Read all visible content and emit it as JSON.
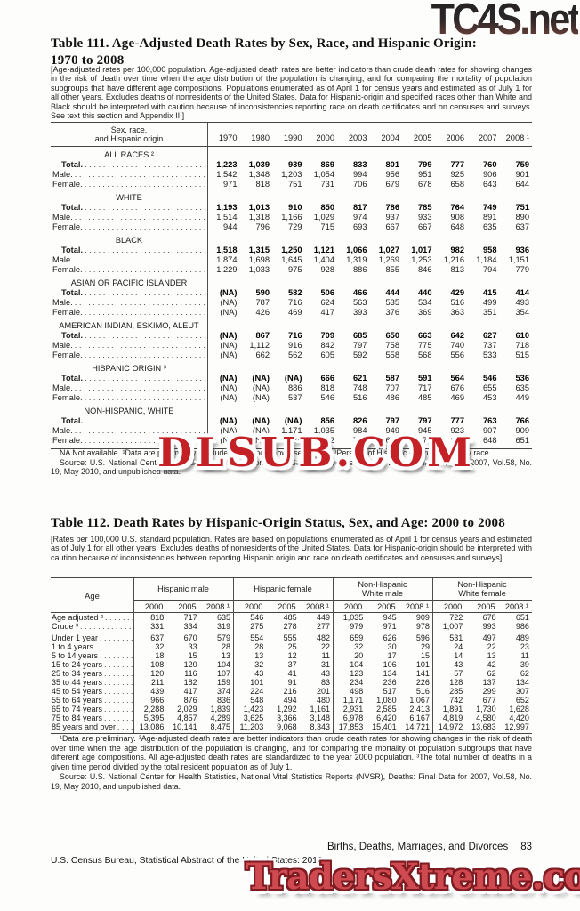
{
  "watermarks": {
    "top": "TC4S.net",
    "middle": "DLSUB.COM",
    "bottom": "TradersXtreme.com"
  },
  "footer": {
    "section": "Births, Deaths, Marriages, and Divorces",
    "page": "83",
    "left": "U.S. Census Bureau, Statistical Abstract of the United States: 2012"
  },
  "table111": {
    "title_line1": "Table 111. Age-Adjusted Death Rates by Sex, Race, and Hispanic Origin:",
    "title_line2": "1970 to 2008",
    "note": "[Age-adjusted rates per 100,000 population. Age-adjusted death rates are better indicators than crude death rates for showing changes in the risk of death over time when the age distribution of the population is changing, and for comparing the mortality of population subgroups that have different age compositions. Populations enumerated as of April 1 for census years and estimated as of July 1 for all other years. Excludes deaths of nonresidents of the United States. Data for Hispanic-origin and specified races other than White and Black should be interpreted with caution because of inconsistencies reporting race on death certificates and on censuses and surveys. See text this section and Appendix III]",
    "stub_head": "Sex, race,\nand Hispanic origin",
    "years": [
      "1970",
      "1980",
      "1990",
      "2000",
      "2003",
      "2004",
      "2005",
      "2006",
      "2007",
      "2008 ¹"
    ],
    "groups": [
      {
        "label": "ALL RACES ²",
        "rows": [
          {
            "label": "Total.",
            "bold": true,
            "values": [
              "1,223",
              "1,039",
              "939",
              "869",
              "833",
              "801",
              "799",
              "777",
              "760",
              "759"
            ]
          },
          {
            "label": "Male.",
            "bold": false,
            "values": [
              "1,542",
              "1,348",
              "1,203",
              "1,054",
              "994",
              "956",
              "951",
              "925",
              "906",
              "901"
            ]
          },
          {
            "label": "Female.",
            "bold": false,
            "values": [
              "971",
              "818",
              "751",
              "731",
              "706",
              "679",
              "678",
              "658",
              "643",
              "644"
            ]
          }
        ]
      },
      {
        "label": "WHITE",
        "rows": [
          {
            "label": "Total.",
            "bold": true,
            "values": [
              "1,193",
              "1,013",
              "910",
              "850",
              "817",
              "786",
              "785",
              "764",
              "749",
              "751"
            ]
          },
          {
            "label": "Male.",
            "bold": false,
            "values": [
              "1,514",
              "1,318",
              "1,166",
              "1,029",
              "974",
              "937",
              "933",
              "908",
              "891",
              "890"
            ]
          },
          {
            "label": "Female.",
            "bold": false,
            "values": [
              "944",
              "796",
              "729",
              "715",
              "693",
              "667",
              "667",
              "648",
              "635",
              "637"
            ]
          }
        ]
      },
      {
        "label": "BLACK",
        "rows": [
          {
            "label": "Total.",
            "bold": true,
            "values": [
              "1,518",
              "1,315",
              "1,250",
              "1,121",
              "1,066",
              "1,027",
              "1,017",
              "982",
              "958",
              "936"
            ]
          },
          {
            "label": "Male.",
            "bold": false,
            "values": [
              "1,874",
              "1,698",
              "1,645",
              "1,404",
              "1,319",
              "1,269",
              "1,253",
              "1,216",
              "1,184",
              "1,151"
            ]
          },
          {
            "label": "Female.",
            "bold": false,
            "values": [
              "1,229",
              "1,033",
              "975",
              "928",
              "886",
              "855",
              "846",
              "813",
              "794",
              "779"
            ]
          }
        ]
      },
      {
        "label": "ASIAN OR PACIFIC ISLANDER",
        "rows": [
          {
            "label": "Total.",
            "bold": true,
            "values": [
              "(NA)",
              "590",
              "582",
              "506",
              "466",
              "444",
              "440",
              "429",
              "415",
              "414"
            ]
          },
          {
            "label": "Male.",
            "bold": false,
            "values": [
              "(NA)",
              "787",
              "716",
              "624",
              "563",
              "535",
              "534",
              "516",
              "499",
              "493"
            ]
          },
          {
            "label": "Female.",
            "bold": false,
            "values": [
              "(NA)",
              "426",
              "469",
              "417",
              "393",
              "376",
              "369",
              "363",
              "351",
              "354"
            ]
          }
        ]
      },
      {
        "label": "AMERICAN INDIAN, ESKIMO, ALEUT",
        "rows": [
          {
            "label": "Total.",
            "bold": true,
            "values": [
              "(NA)",
              "867",
              "716",
              "709",
              "685",
              "650",
              "663",
              "642",
              "627",
              "610"
            ]
          },
          {
            "label": "Male.",
            "bold": false,
            "values": [
              "(NA)",
              "1,112",
              "916",
              "842",
              "797",
              "758",
              "775",
              "740",
              "737",
              "718"
            ]
          },
          {
            "label": "Female.",
            "bold": false,
            "values": [
              "(NA)",
              "662",
              "562",
              "605",
              "592",
              "558",
              "568",
              "556",
              "533",
              "515"
            ]
          }
        ]
      },
      {
        "label": "HISPANIC ORIGIN ³",
        "rows": [
          {
            "label": "Total.",
            "bold": true,
            "values": [
              "(NA)",
              "(NA)",
              "(NA)",
              "666",
              "621",
              "587",
              "591",
              "564",
              "546",
              "536"
            ]
          },
          {
            "label": "Male.",
            "bold": false,
            "values": [
              "(NA)",
              "(NA)",
              "886",
              "818",
              "748",
              "707",
              "717",
              "676",
              "655",
              "635"
            ]
          },
          {
            "label": "Female.",
            "bold": false,
            "values": [
              "(NA)",
              "(NA)",
              "537",
              "546",
              "516",
              "486",
              "485",
              "469",
              "453",
              "449"
            ]
          }
        ]
      },
      {
        "label": "NON-HISPANIC, WHITE",
        "rows": [
          {
            "label": "Total.",
            "bold": true,
            "values": [
              "(NA)",
              "(NA)",
              "(NA)",
              "856",
              "826",
              "797",
              "797",
              "777",
              "763",
              "766"
            ]
          },
          {
            "label": "Male.",
            "bold": false,
            "values": [
              "(NA)",
              "(NA)",
              "1,171",
              "1,035",
              "984",
              "949",
              "945",
              "923",
              "907",
              "909"
            ]
          },
          {
            "label": "Female.",
            "bold": false,
            "values": [
              "(NA)",
              "(NA)",
              "735",
              "722",
              "702",
              "678",
              "678",
              "660",
              "648",
              "651"
            ]
          }
        ]
      }
    ],
    "footnote": "NA Not available. ¹Data are preliminary. ²Includes races not shown separately. ³Persons of Hispanic origin may be any race.",
    "source": "Source: U.S. National Center for Health Statistics, National Vital Statistics Reports (NVSR), Deaths: Final Data for 2007, Vol.58, No. 19, May 2010, and unpublished data."
  },
  "table112": {
    "title": "Table 112. Death Rates by Hispanic-Origin Status, Sex, and Age: 2000 to 2008",
    "note": "[Rates per 100,000 U.S. standard population. Rates are based on populations enumerated as of April 1 for census years and estimated as of July 1 for all other years. Excludes deaths of nonresidents of the United States. Data for Hispanic-origin should be interpreted with caution because of inconsistencies between reporting Hispanic origin and race on death certificates and censuses and surveys]",
    "stub_head": "Age",
    "col_groups": [
      "Hispanic male",
      "Hispanic female",
      "Non-Hispanic\nWhite male",
      "Non-Hispanic\nWhite female"
    ],
    "years": [
      "2000",
      "2005",
      "2008 ¹"
    ],
    "rows": [
      {
        "label": "Age adjusted ²",
        "values": [
          "818",
          "717",
          "635",
          "546",
          "485",
          "449",
          "1,035",
          "945",
          "909",
          "722",
          "678",
          "651"
        ]
      },
      {
        "label": "Crude ³",
        "values": [
          "331",
          "334",
          "319",
          "275",
          "278",
          "277",
          "979",
          "971",
          "978",
          "1,007",
          "993",
          "986"
        ]
      },
      {
        "label": "Under 1 year",
        "values": [
          "637",
          "670",
          "579",
          "554",
          "555",
          "482",
          "659",
          "626",
          "596",
          "531",
          "497",
          "489"
        ]
      },
      {
        "label": "1 to 4 years",
        "values": [
          "32",
          "33",
          "28",
          "28",
          "25",
          "22",
          "32",
          "30",
          "29",
          "24",
          "22",
          "23"
        ]
      },
      {
        "label": "5 to 14 years",
        "values": [
          "18",
          "15",
          "13",
          "13",
          "12",
          "11",
          "20",
          "17",
          "15",
          "14",
          "13",
          "11"
        ]
      },
      {
        "label": "15 to 24 years",
        "values": [
          "108",
          "120",
          "104",
          "32",
          "37",
          "31",
          "104",
          "106",
          "101",
          "43",
          "42",
          "39"
        ]
      },
      {
        "label": "25 to 34 years",
        "values": [
          "120",
          "116",
          "107",
          "43",
          "41",
          "43",
          "123",
          "134",
          "141",
          "57",
          "62",
          "62"
        ]
      },
      {
        "label": "35 to 44 years",
        "values": [
          "211",
          "182",
          "159",
          "101",
          "91",
          "83",
          "234",
          "236",
          "226",
          "128",
          "137",
          "134"
        ]
      },
      {
        "label": "45 to 54 years",
        "values": [
          "439",
          "417",
          "374",
          "224",
          "216",
          "201",
          "498",
          "517",
          "516",
          "285",
          "299",
          "307"
        ]
      },
      {
        "label": "55 to 64 years",
        "values": [
          "966",
          "876",
          "836",
          "548",
          "494",
          "480",
          "1,171",
          "1,080",
          "1,067",
          "742",
          "677",
          "652"
        ]
      },
      {
        "label": "65 to 74 years",
        "values": [
          "2,288",
          "2,029",
          "1,839",
          "1,423",
          "1,292",
          "1,161",
          "2,931",
          "2,585",
          "2,413",
          "1,891",
          "1,730",
          "1,628"
        ]
      },
      {
        "label": "75 to 84 years",
        "values": [
          "5,395",
          "4,857",
          "4,289",
          "3,625",
          "3,366",
          "3,148",
          "6,978",
          "6,420",
          "6,167",
          "4,819",
          "4,580",
          "4,420"
        ]
      },
      {
        "label": "85 years and over",
        "values": [
          "13,086",
          "10,141",
          "8,475",
          "11,203",
          "9,068",
          "8,343",
          "17,853",
          "15,401",
          "14,721",
          "14,972",
          "13,683",
          "12,997"
        ]
      }
    ],
    "footnote": "¹Data are preliminary. ²Age-adjusted death rates are better indicators than crude death rates for showing changes in the risk of death over time when the age distribution of the population is changing, and for comparing the mortality of population subgroups that have different age compositions. All age-adjusted death rates are standardized to the year 2000 population. ³The total number of deaths in a given time period divided by the total resident population as of July 1.",
    "source": "Source: U.S. National Center for Health Statistics, National Vital Statistics Reports (NVSR), Deaths: Final Data for 2007, Vol.58, No. 19, May 2010, and unpublished data."
  }
}
